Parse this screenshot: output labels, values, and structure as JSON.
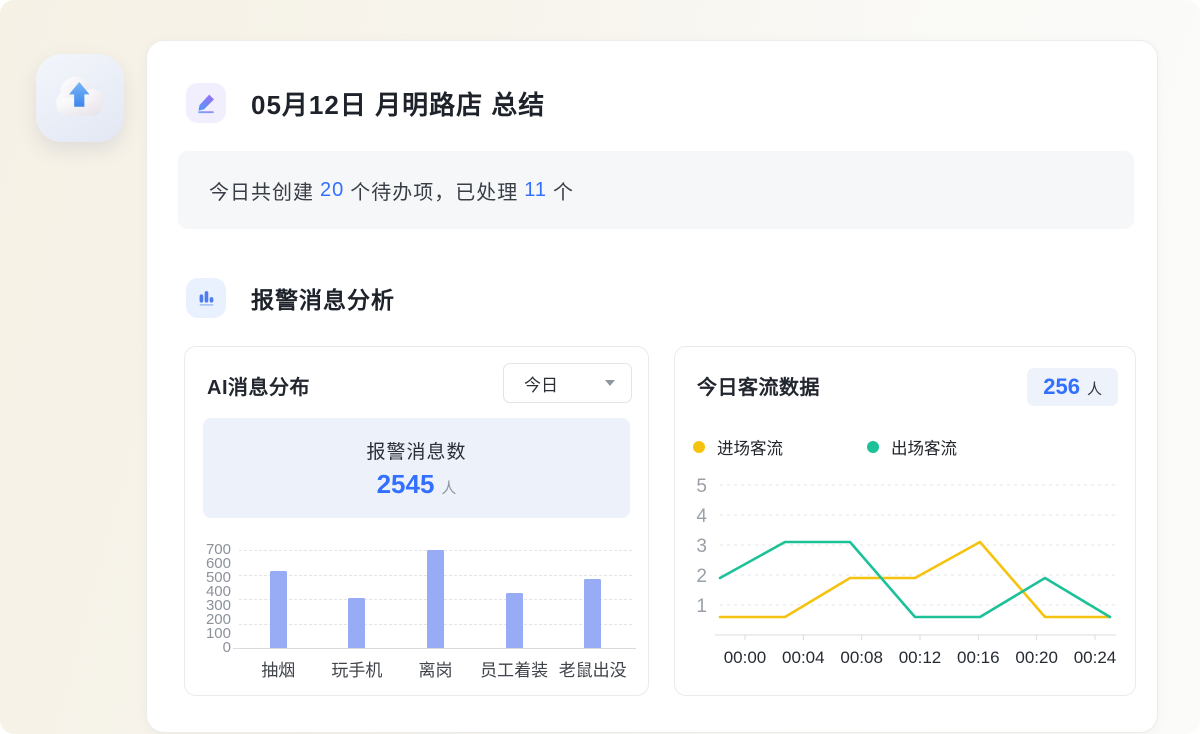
{
  "page": {
    "title": "05月12日 月明路店 总结",
    "title_icon": "pencil-icon",
    "app_icon": "cloud-upload-icon",
    "accent_color": "#3370FF"
  },
  "summary": {
    "part1": "今日共创建",
    "created_count": "20",
    "part2": "个待办项，已处理",
    "done_count": "11",
    "part3": "个"
  },
  "section": {
    "title": "报警消息分析",
    "icon": "bar-chart-icon"
  },
  "left_panel": {
    "title": "AI消息分布",
    "dropdown": {
      "value": "今日",
      "icon": "caret-down-icon"
    },
    "stat": {
      "label": "报警消息数",
      "value": "2545",
      "unit": "人"
    }
  },
  "right_panel": {
    "title": "今日客流数据",
    "badge": {
      "value": "256",
      "unit": "人"
    },
    "legend": [
      {
        "label": "进场客流",
        "color": "#F5C30D"
      },
      {
        "label": "出场客流",
        "color": "#1DC198"
      }
    ]
  },
  "chart_data": [
    {
      "type": "bar",
      "title": "AI消息分布",
      "categories": [
        "抽烟",
        "玩手机",
        "离岗",
        "员工着装",
        "老鼠出没"
      ],
      "values": [
        550,
        360,
        700,
        390,
        490
      ],
      "xlabel": "",
      "ylabel": "",
      "ylim": [
        0,
        700
      ],
      "y_tick_labels": [
        0,
        100,
        200,
        300,
        400,
        500,
        600,
        700
      ],
      "gridlines": [
        175,
        350,
        525,
        700
      ],
      "grid": "dashed",
      "bar_color": "#97ACF4"
    },
    {
      "type": "line",
      "title": "今日客流数据",
      "x": [
        "00:00",
        "00:04",
        "00:08",
        "00:12",
        "00:16",
        "00:20",
        "00:24"
      ],
      "series": [
        {
          "name": "进场客流",
          "color": "#F5C30D",
          "values": [
            0.6,
            0.6,
            1.9,
            1.9,
            3.1,
            0.6,
            0.6
          ]
        },
        {
          "name": "出场客流",
          "color": "#1DC198",
          "values": [
            1.9,
            3.1,
            3.1,
            0.6,
            0.6,
            1.9,
            0.6
          ]
        }
      ],
      "xlabel": "",
      "ylabel": "",
      "ylim": [
        0,
        5
      ],
      "y_ticks": [
        1,
        2,
        3,
        4,
        5
      ],
      "grid": "dashed",
      "legend_position": "top-left"
    }
  ]
}
